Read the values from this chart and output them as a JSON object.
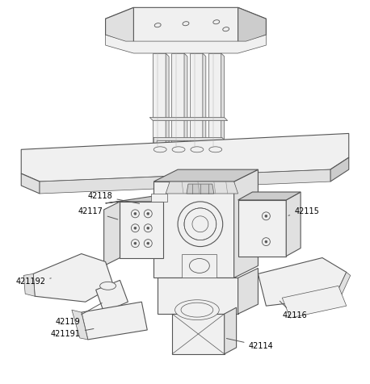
{
  "figure_width": 4.58,
  "figure_height": 4.76,
  "dpi": 100,
  "bg_color": "#ffffff",
  "line_color": "#555555",
  "label_color": "#000000",
  "label_fontsize": 7.0,
  "fill_light": "#f0f0f0",
  "fill_mid": "#e0e0e0",
  "fill_dark": "#cccccc",
  "fill_darker": "#bbbbbb"
}
